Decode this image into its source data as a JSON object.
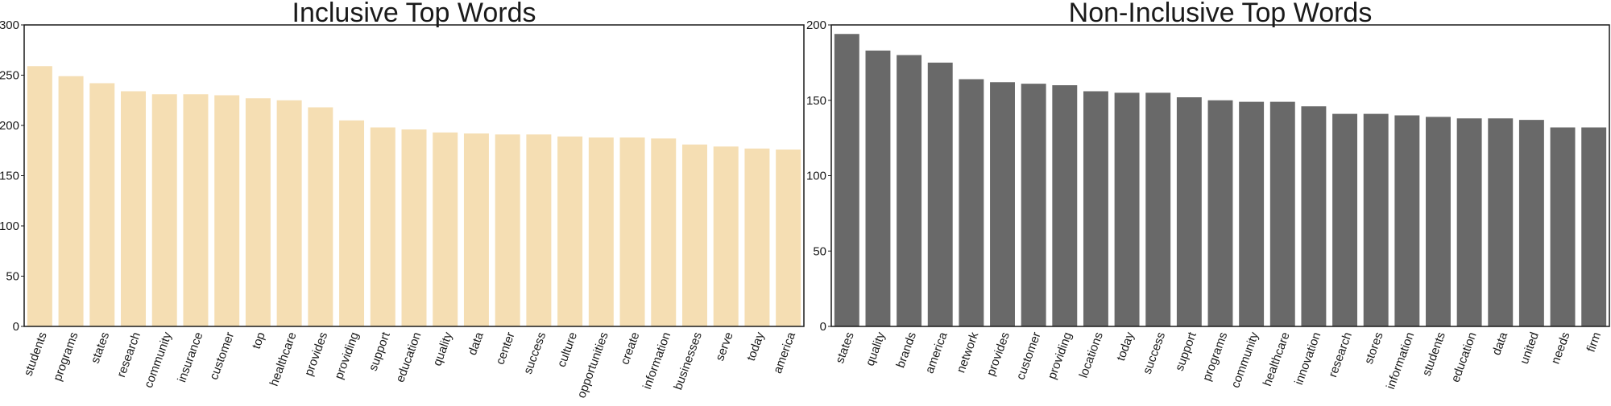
{
  "chart_data": [
    {
      "type": "bar",
      "title": "Inclusive Top Words",
      "xlabel": "",
      "ylabel": "",
      "ylim": [
        0,
        300
      ],
      "yticks": [
        0,
        50,
        100,
        150,
        200,
        250,
        300
      ],
      "color": "#f5deb3",
      "grid": false,
      "categories": [
        "students",
        "programs",
        "states",
        "research",
        "community",
        "insurance",
        "customer",
        "top",
        "healthcare",
        "provides",
        "providing",
        "support",
        "education",
        "quality",
        "data",
        "center",
        "success",
        "culture",
        "opportunities",
        "create",
        "information",
        "businesses",
        "serve",
        "today",
        "america"
      ],
      "values": [
        259,
        249,
        242,
        234,
        231,
        231,
        230,
        227,
        225,
        218,
        205,
        198,
        196,
        193,
        192,
        191,
        191,
        189,
        188,
        188,
        187,
        181,
        179,
        177,
        176
      ]
    },
    {
      "type": "bar",
      "title": "Non-Inclusive Top Words",
      "xlabel": "",
      "ylabel": "",
      "ylim": [
        0,
        200
      ],
      "yticks": [
        0,
        50,
        100,
        150,
        200
      ],
      "color": "#696969",
      "grid": false,
      "categories": [
        "states",
        "quality",
        "brands",
        "america",
        "network",
        "provides",
        "customer",
        "providing",
        "locations",
        "today",
        "success",
        "support",
        "programs",
        "community",
        "healthcare",
        "innovation",
        "research",
        "stores",
        "information",
        "students",
        "education",
        "data",
        "united",
        "needs",
        "firm"
      ],
      "values": [
        194,
        183,
        180,
        175,
        164,
        162,
        161,
        160,
        156,
        155,
        155,
        152,
        150,
        149,
        149,
        146,
        141,
        141,
        140,
        139,
        138,
        138,
        137,
        132,
        132
      ]
    }
  ]
}
